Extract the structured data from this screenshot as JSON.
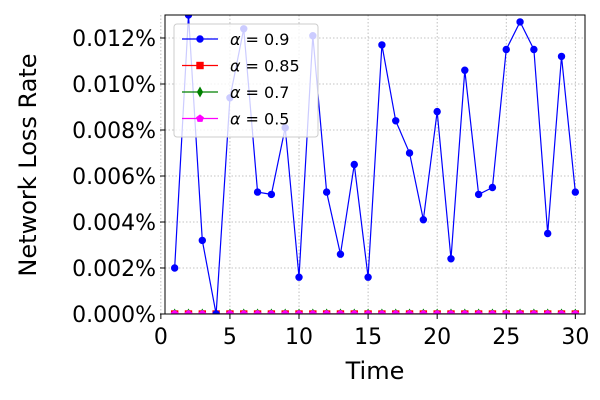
{
  "chart_data": {
    "type": "line",
    "xlabel": "Time",
    "ylabel": "Network Loss Rate",
    "xlim": [
      0.3,
      30.7
    ],
    "ylim": [
      0.0,
      0.013
    ],
    "xticks": [
      0,
      5,
      10,
      15,
      20,
      25,
      30
    ],
    "xtick_labels": [
      "0",
      "5",
      "10",
      "15",
      "20",
      "25",
      "30"
    ],
    "yticks": [
      0.0,
      0.002,
      0.004,
      0.006,
      0.008,
      0.01,
      0.012
    ],
    "ytick_labels": [
      "0.000%",
      "0.002%",
      "0.004%",
      "0.006%",
      "0.008%",
      "0.010%",
      "0.012%"
    ],
    "grid": true,
    "legend_position": "top-left",
    "x": [
      1,
      2,
      3,
      4,
      5,
      6,
      7,
      8,
      9,
      10,
      11,
      12,
      13,
      14,
      15,
      16,
      17,
      18,
      19,
      20,
      21,
      22,
      23,
      24,
      25,
      26,
      27,
      28,
      29,
      30
    ],
    "series": [
      {
        "name": "= 0.9",
        "greek": "α",
        "color": "#0000ff",
        "marker": "circle",
        "values": [
          0.002,
          0.013,
          0.0032,
          0.0,
          0.0094,
          0.0124,
          0.0053,
          0.0052,
          0.0081,
          0.0016,
          0.0121,
          0.0053,
          0.0026,
          0.0065,
          0.0016,
          0.0117,
          0.0084,
          0.007,
          0.0041,
          0.0088,
          0.0024,
          0.0106,
          0.0052,
          0.0055,
          0.0115,
          0.0127,
          0.0115,
          0.0035,
          0.0112,
          0.0053
        ]
      },
      {
        "name": "= 0.85",
        "greek": "α",
        "color": "#ff0000",
        "marker": "square",
        "values": [
          0,
          0,
          0,
          0,
          0,
          0,
          0,
          0,
          0,
          0,
          0,
          0,
          0,
          0,
          0,
          0,
          0,
          0,
          0,
          0,
          0,
          0,
          0,
          0,
          0,
          0,
          0,
          0,
          0,
          0
        ]
      },
      {
        "name": "= 0.7",
        "greek": "α",
        "color": "#008000",
        "marker": "diamond",
        "values": [
          0,
          0,
          0,
          0,
          0,
          0,
          0,
          0,
          0,
          0,
          0,
          0,
          0,
          0,
          0,
          0,
          0,
          0,
          0,
          0,
          0,
          0,
          0,
          0,
          0,
          0,
          0,
          0,
          0,
          0
        ]
      },
      {
        "name": "= 0.5",
        "greek": "α",
        "color": "#ff00ff",
        "marker": "pentagon",
        "values": [
          0,
          0,
          0,
          0,
          0,
          0,
          0,
          0,
          0,
          0,
          0,
          0,
          0,
          0,
          0,
          0,
          0,
          0,
          0,
          0,
          0,
          0,
          0,
          0,
          0,
          0,
          0,
          0,
          0,
          0
        ]
      }
    ]
  }
}
